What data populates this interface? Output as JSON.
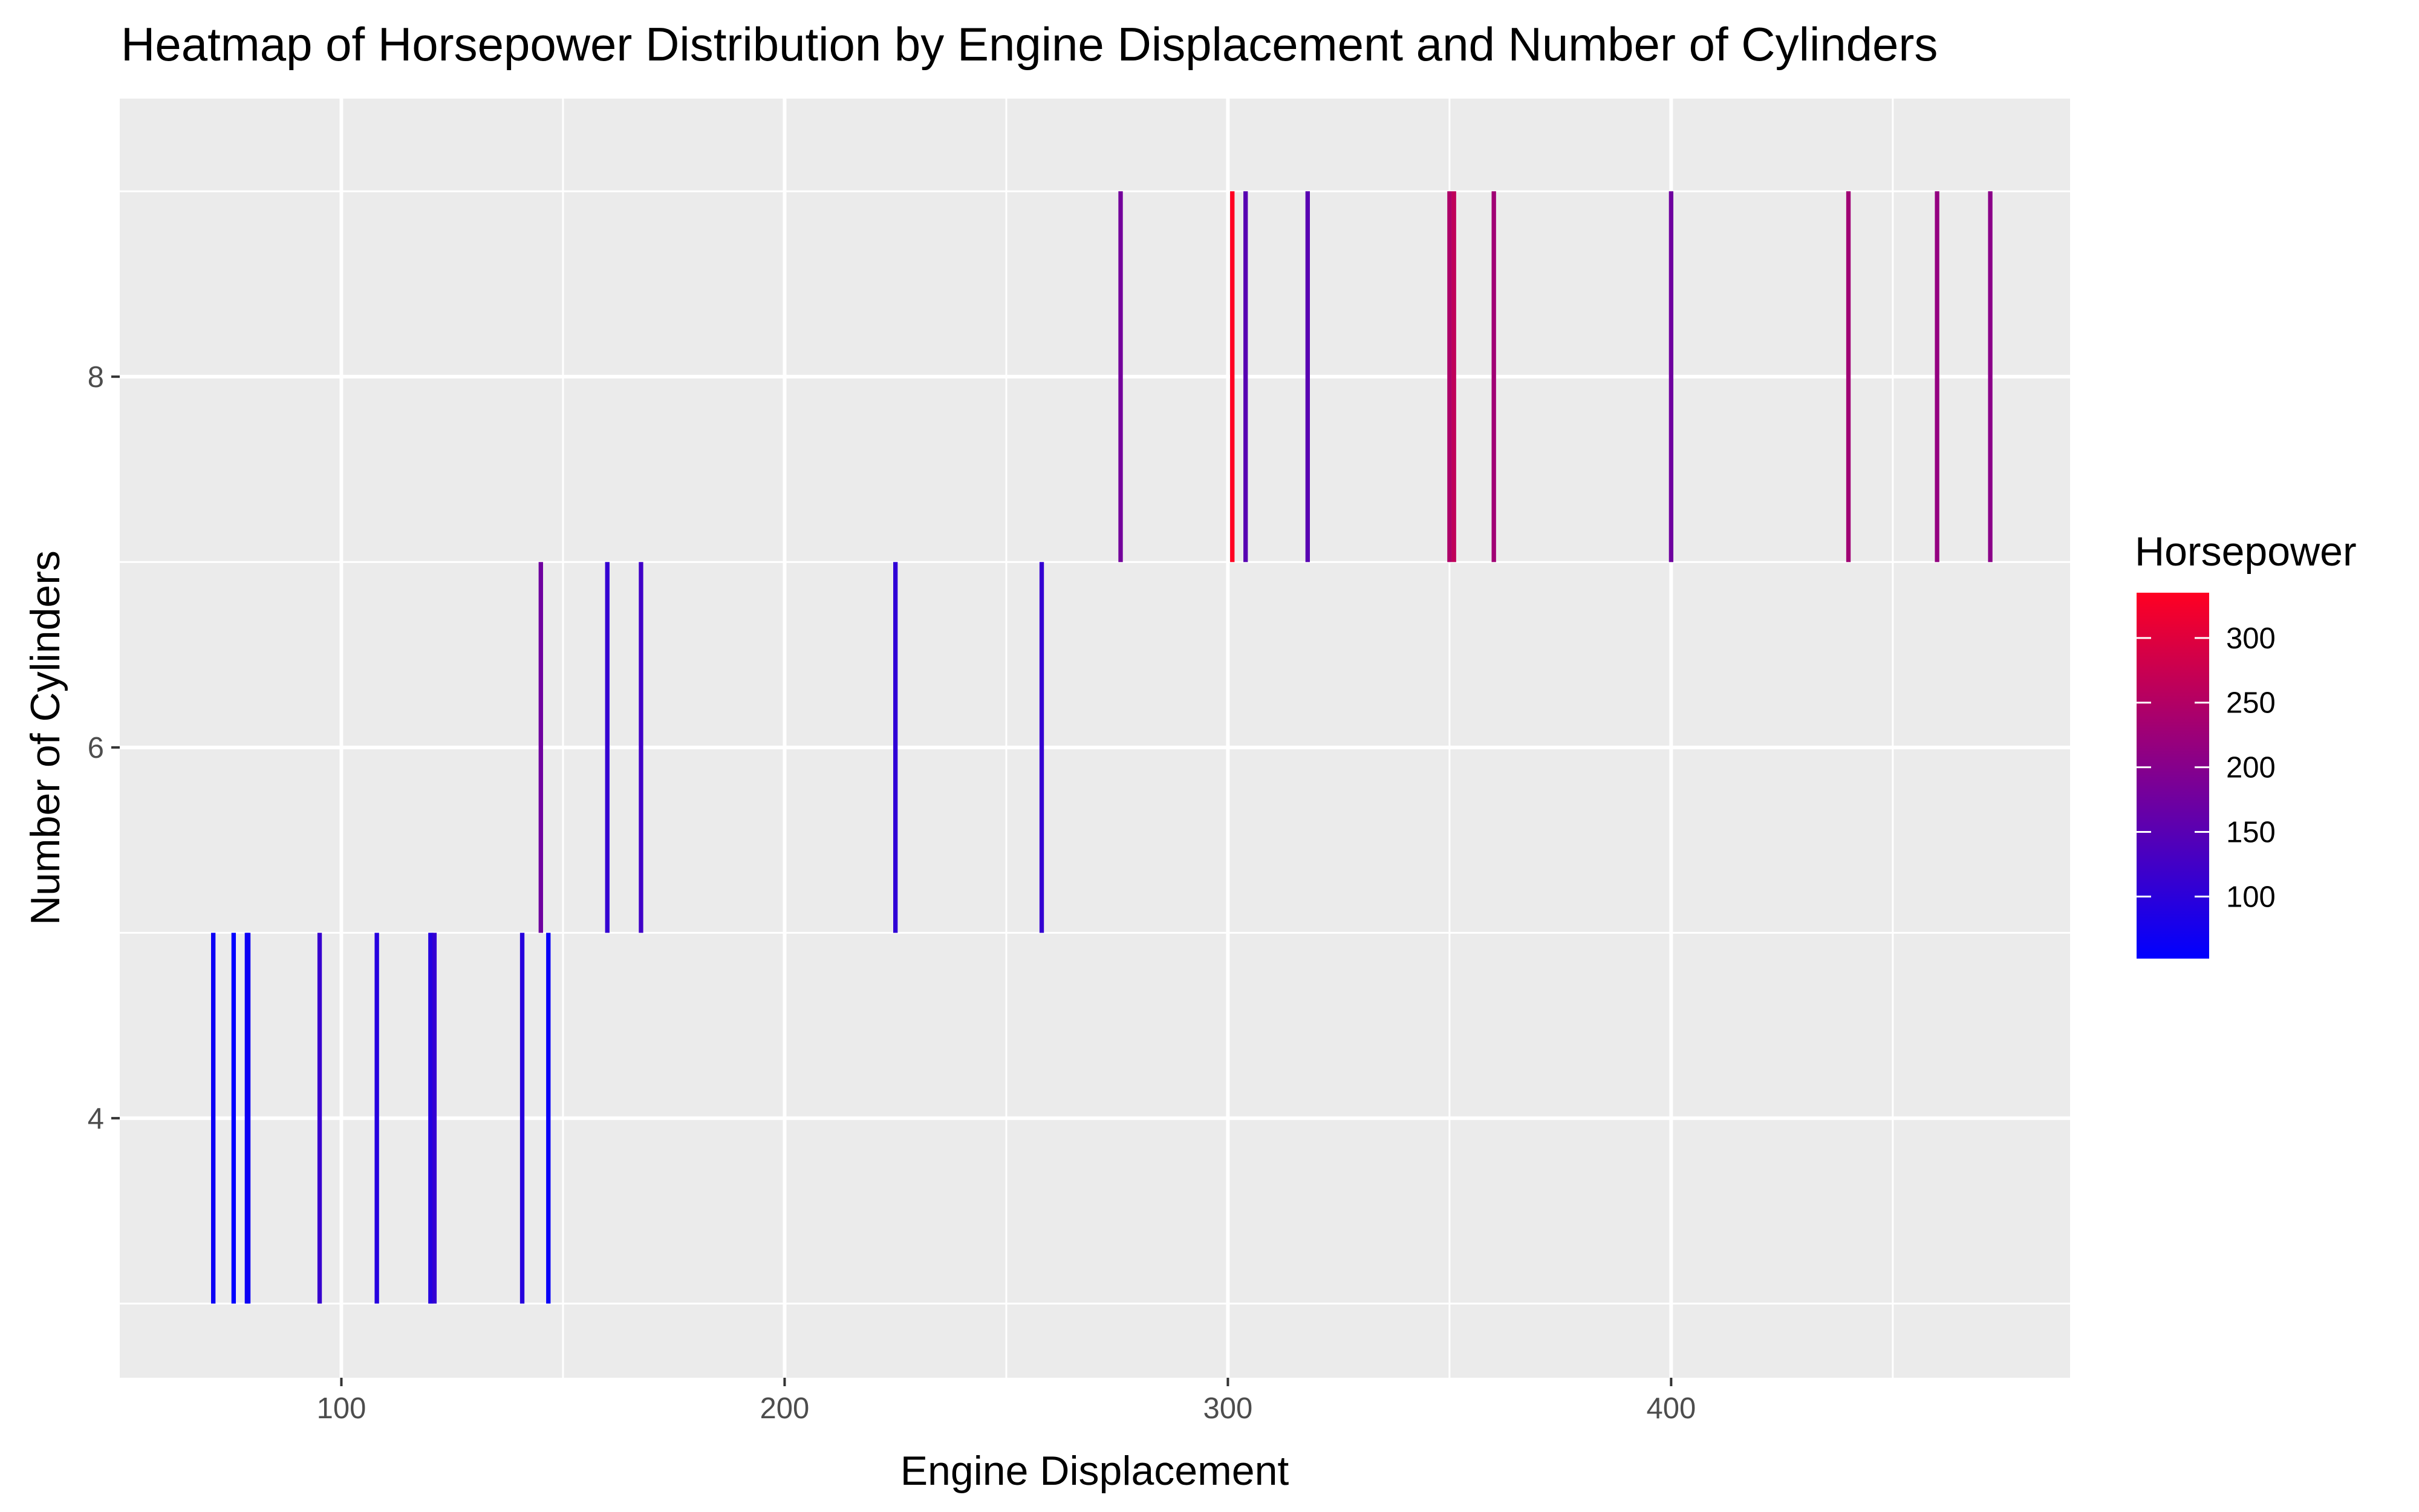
{
  "chart_data": {
    "type": "heatmap",
    "title": "Heatmap of Horsepower Distribution by Engine Displacement and Number of Cylinders",
    "xlabel": "Engine Displacement",
    "ylabel": "Number of Cylinders",
    "xlim": [
      50,
      490
    ],
    "ylim": [
      2.6,
      9.5
    ],
    "x_ticks": [
      100,
      200,
      300,
      400
    ],
    "y_ticks": [
      4,
      6,
      8
    ],
    "grid": true,
    "legend": {
      "title": "Horsepower",
      "placement": "right",
      "ticks": [
        100,
        150,
        200,
        250,
        300
      ],
      "range": [
        52,
        335
      ],
      "color_low": "#0000ff",
      "color_high": "#ff0022"
    },
    "cells": [
      {
        "disp": 71.1,
        "cyl": 4,
        "hp": 65
      },
      {
        "disp": 75.7,
        "cyl": 4,
        "hp": 52
      },
      {
        "disp": 78.7,
        "cyl": 4,
        "hp": 66
      },
      {
        "disp": 79.0,
        "cyl": 4,
        "hp": 66
      },
      {
        "disp": 95.1,
        "cyl": 4,
        "hp": 113
      },
      {
        "disp": 108.0,
        "cyl": 4,
        "hp": 93
      },
      {
        "disp": 120.1,
        "cyl": 4,
        "hp": 97
      },
      {
        "disp": 120.3,
        "cyl": 4,
        "hp": 91
      },
      {
        "disp": 121.0,
        "cyl": 4,
        "hp": 109
      },
      {
        "disp": 140.8,
        "cyl": 4,
        "hp": 95
      },
      {
        "disp": 146.7,
        "cyl": 4,
        "hp": 62
      },
      {
        "disp": 145.0,
        "cyl": 6,
        "hp": 175
      },
      {
        "disp": 160.0,
        "cyl": 6,
        "hp": 110
      },
      {
        "disp": 167.6,
        "cyl": 6,
        "hp": 123
      },
      {
        "disp": 225.0,
        "cyl": 6,
        "hp": 105
      },
      {
        "disp": 258.0,
        "cyl": 6,
        "hp": 110
      },
      {
        "disp": 275.8,
        "cyl": 8,
        "hp": 180
      },
      {
        "disp": 301.0,
        "cyl": 8,
        "hp": 335
      },
      {
        "disp": 304.0,
        "cyl": 8,
        "hp": 150
      },
      {
        "disp": 318.0,
        "cyl": 8,
        "hp": 150
      },
      {
        "disp": 350.0,
        "cyl": 8,
        "hp": 245
      },
      {
        "disp": 351.0,
        "cyl": 8,
        "hp": 264
      },
      {
        "disp": 360.0,
        "cyl": 8,
        "hp": 230
      },
      {
        "disp": 400.0,
        "cyl": 8,
        "hp": 175
      },
      {
        "disp": 440.0,
        "cyl": 8,
        "hp": 230
      },
      {
        "disp": 460.0,
        "cyl": 8,
        "hp": 215
      },
      {
        "disp": 472.0,
        "cyl": 8,
        "hp": 205
      }
    ]
  }
}
